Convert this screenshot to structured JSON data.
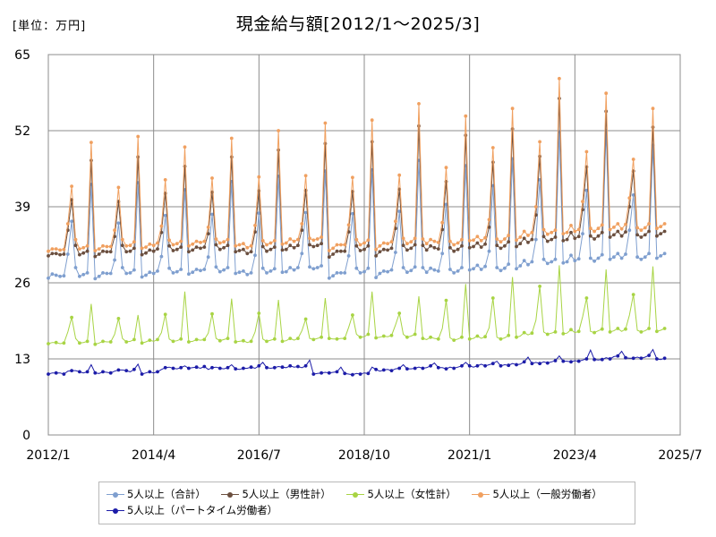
{
  "unit_label": "[単位：万円]",
  "chart_data": {
    "type": "line",
    "title": "現金給与額[2012/1～2025/3]",
    "xlabel": "",
    "ylabel": "",
    "x_start": "2012/1",
    "x_end": "2025/3",
    "xlim": [
      "2012/1",
      "2025/7"
    ],
    "ylim": [
      0,
      65
    ],
    "yticks": [
      0,
      13,
      26,
      39,
      52,
      65
    ],
    "xticks": [
      "2012/1",
      "2014/4",
      "2016/7",
      "2018/10",
      "2021/1",
      "2023/4",
      "2025/7"
    ],
    "grid": true,
    "legend_position": "bottom",
    "series": [
      {
        "name": "5人以上（合計）",
        "color": "#7f9fcf",
        "values": [
          26.8,
          27.5,
          27.3,
          27.1,
          27.2,
          30.9,
          36.5,
          28.6,
          27.1,
          27.4,
          27.7,
          42.8,
          26.7,
          27.1,
          27.7,
          27.6,
          27.6,
          29.9,
          36.2,
          28.6,
          27.6,
          27.7,
          28.2,
          43.1,
          27.0,
          27.3,
          27.8,
          27.6,
          28.0,
          30.5,
          37.5,
          28.5,
          27.7,
          27.9,
          28.3,
          41.9,
          27.5,
          27.8,
          28.3,
          28.1,
          28.3,
          30.4,
          37.7,
          28.7,
          27.9,
          28.2,
          28.6,
          43.3,
          27.6,
          27.8,
          28.0,
          27.4,
          27.7,
          30.7,
          37.9,
          28.5,
          27.7,
          28.0,
          28.4,
          44.2,
          27.8,
          27.9,
          28.6,
          28.2,
          28.6,
          31.0,
          38.0,
          28.7,
          28.4,
          28.6,
          28.9,
          45.1,
          26.8,
          27.2,
          27.7,
          27.7,
          27.7,
          30.6,
          37.8,
          28.5,
          27.7,
          27.9,
          28.5,
          45.3,
          26.9,
          27.6,
          28.0,
          27.9,
          28.2,
          31.2,
          38.2,
          28.6,
          27.8,
          28.1,
          28.7,
          46.9,
          28.6,
          27.8,
          28.5,
          28.2,
          28.0,
          31.0,
          39.4,
          28.3,
          27.7,
          28.0,
          28.6,
          46.0,
          28.2,
          28.4,
          29.0,
          28.3,
          28.8,
          31.4,
          42.6,
          28.6,
          28.1,
          28.5,
          29.2,
          47.2,
          28.4,
          28.9,
          29.8,
          29.1,
          29.6,
          33.4,
          43.6,
          30.0,
          29.3,
          29.6,
          30.0,
          51.8,
          29.4,
          29.6,
          30.7,
          29.8,
          30.1,
          34.4,
          41.8,
          30.2,
          29.7,
          30.2,
          30.8,
          52.0,
          30.0,
          30.4,
          31.0,
          30.2,
          30.9,
          35.0,
          41.0,
          30.4,
          30.0,
          30.4,
          31.0,
          49.5,
          30.2,
          30.6,
          31.0
        ],
        "stride": 1
      },
      {
        "name": "5人以上（男性計）",
        "color": "#6b4f3f",
        "values": [
          30.6,
          31.0,
          31.0,
          30.8,
          30.9,
          35.0,
          40.2,
          32.4,
          30.8,
          31.1,
          31.4,
          46.9,
          30.5,
          30.9,
          31.4,
          31.3,
          31.3,
          33.9,
          39.9,
          32.4,
          31.3,
          31.4,
          31.9,
          47.5,
          30.8,
          31.1,
          31.6,
          31.4,
          31.8,
          34.6,
          41.3,
          32.3,
          31.5,
          31.7,
          32.1,
          45.9,
          31.3,
          31.6,
          32.1,
          31.9,
          32.1,
          34.4,
          41.5,
          32.5,
          31.7,
          32.0,
          32.4,
          47.5,
          31.3,
          31.5,
          31.7,
          31.0,
          31.3,
          34.7,
          41.7,
          32.2,
          31.4,
          31.7,
          32.1,
          48.7,
          31.6,
          31.7,
          32.4,
          32.0,
          32.4,
          35.0,
          41.8,
          32.5,
          32.2,
          32.4,
          32.7,
          49.8,
          30.4,
          30.9,
          31.4,
          31.4,
          31.4,
          34.7,
          41.6,
          32.3,
          31.5,
          31.7,
          32.3,
          50.1,
          30.6,
          31.3,
          31.7,
          31.6,
          31.9,
          35.3,
          42.0,
          32.4,
          31.6,
          31.9,
          32.5,
          52.8,
          32.4,
          31.6,
          32.3,
          32.0,
          31.8,
          35.1,
          43.3,
          32.0,
          31.4,
          31.7,
          32.3,
          51.2,
          32.0,
          32.2,
          32.8,
          32.1,
          32.6,
          35.5,
          46.6,
          32.4,
          31.9,
          32.3,
          33.0,
          52.3,
          32.2,
          32.7,
          33.6,
          32.9,
          33.4,
          37.6,
          47.6,
          33.9,
          33.1,
          33.4,
          33.8,
          57.5,
          33.2,
          33.4,
          34.6,
          33.6,
          33.9,
          38.5,
          45.8,
          34.0,
          33.5,
          34.0,
          34.6,
          55.3,
          33.8,
          34.2,
          34.8,
          34.0,
          34.7,
          39.0,
          45.1,
          34.2,
          33.8,
          34.2,
          34.8,
          52.6,
          34.0,
          34.4,
          34.8
        ],
        "stride": 1
      },
      {
        "name": "5人以上（女性計）",
        "color": "#a8d444",
        "values": [
          15.6,
          15.8,
          15.8,
          15.6,
          15.7,
          17.6,
          20.1,
          16.5,
          15.7,
          15.8,
          16.0,
          22.4,
          15.5,
          15.7,
          16.0,
          15.9,
          15.9,
          17.2,
          19.9,
          16.5,
          15.9,
          16.0,
          16.3,
          20.5,
          15.7,
          15.9,
          16.2,
          16.0,
          16.3,
          17.5,
          20.6,
          16.4,
          16.0,
          16.1,
          16.4,
          24.5,
          15.9,
          16.0,
          16.3,
          16.2,
          16.3,
          17.4,
          20.7,
          16.5,
          16.1,
          16.3,
          16.5,
          23.3,
          15.9,
          16.0,
          16.1,
          15.8,
          16.0,
          17.6,
          20.8,
          16.4,
          16.0,
          16.2,
          16.4,
          23.1,
          16.0,
          16.1,
          16.5,
          16.2,
          16.5,
          17.8,
          19.8,
          16.5,
          16.3,
          16.5,
          16.7,
          23.4,
          16.5,
          16.4,
          16.4,
          16.5,
          16.5,
          18.4,
          20.5,
          17.2,
          16.7,
          16.8,
          17.2,
          24.5,
          16.6,
          16.7,
          16.9,
          16.8,
          17.0,
          18.8,
          20.8,
          17.2,
          16.7,
          16.9,
          17.2,
          23.7,
          16.5,
          16.3,
          16.7,
          16.5,
          16.4,
          18.2,
          23.0,
          16.6,
          16.2,
          16.4,
          16.7,
          25.8,
          16.4,
          16.5,
          16.9,
          16.5,
          16.8,
          18.3,
          23.4,
          16.7,
          16.4,
          16.6,
          17.0,
          27.0,
          16.7,
          16.9,
          17.5,
          17.1,
          17.4,
          19.6,
          25.4,
          17.6,
          17.2,
          17.4,
          17.6,
          29.0,
          17.3,
          17.4,
          18.0,
          17.5,
          17.7,
          20.2,
          23.4,
          17.7,
          17.5,
          17.8,
          18.1,
          28.3,
          17.6,
          17.8,
          18.2,
          17.7,
          18.1,
          20.5,
          24.0,
          17.9,
          17.6,
          17.8,
          18.2,
          28.8,
          17.7,
          17.9,
          18.2
        ],
        "stride": 2
      },
      {
        "name": "5人以上（一般労働者）",
        "color": "#f0a060",
        "values": [
          31.4,
          31.8,
          31.8,
          31.6,
          31.7,
          36.1,
          42.5,
          33.4,
          31.8,
          32.0,
          32.3,
          50.0,
          31.5,
          31.8,
          32.3,
          32.2,
          32.2,
          35.0,
          42.3,
          33.4,
          32.3,
          32.4,
          33.0,
          51.0,
          31.9,
          32.1,
          32.6,
          32.4,
          32.8,
          35.7,
          43.6,
          33.3,
          32.5,
          32.7,
          33.1,
          49.2,
          32.3,
          32.6,
          33.1,
          32.9,
          33.1,
          35.5,
          43.9,
          33.5,
          32.8,
          33.0,
          33.4,
          50.7,
          32.3,
          32.5,
          32.7,
          32.0,
          32.3,
          35.8,
          44.1,
          33.2,
          32.5,
          32.8,
          33.2,
          52.0,
          32.6,
          32.8,
          33.5,
          33.1,
          33.4,
          36.1,
          44.3,
          33.6,
          33.3,
          33.5,
          33.8,
          53.3,
          31.5,
          31.9,
          32.5,
          32.5,
          32.5,
          35.9,
          44.0,
          33.4,
          32.5,
          32.8,
          33.3,
          53.8,
          31.7,
          32.3,
          32.8,
          32.7,
          33.0,
          36.5,
          44.4,
          33.6,
          32.7,
          33.0,
          33.6,
          56.6,
          33.5,
          32.7,
          33.4,
          33.1,
          32.9,
          36.3,
          45.7,
          33.1,
          32.5,
          32.8,
          33.4,
          54.5,
          33.2,
          33.3,
          33.9,
          33.2,
          33.7,
          36.8,
          49.1,
          33.5,
          33.0,
          33.5,
          34.1,
          55.8,
          33.3,
          33.8,
          34.8,
          34.1,
          34.6,
          39.0,
          50.1,
          35.1,
          34.3,
          34.6,
          35.0,
          60.9,
          34.4,
          34.6,
          35.8,
          34.8,
          35.1,
          39.9,
          48.4,
          35.3,
          34.8,
          35.3,
          35.9,
          58.4,
          35.1,
          35.5,
          36.1,
          35.2,
          36.0,
          40.5,
          47.1,
          35.4,
          35.0,
          35.4,
          36.1,
          55.8,
          35.3,
          35.6,
          36.1
        ],
        "stride": 1
      },
      {
        "name": "5人以上（パートタイム労働者）",
        "color": "#1c1ca8",
        "values": [
          10.4,
          10.6,
          10.6,
          10.6,
          10.4,
          10.9,
          11.0,
          11.0,
          10.8,
          10.6,
          10.8,
          12.0,
          10.6,
          10.5,
          10.8,
          10.7,
          10.6,
          10.9,
          11.1,
          11.1,
          11.0,
          10.8,
          11.2,
          12.1,
          10.4,
          10.6,
          10.8,
          10.6,
          10.8,
          11.2,
          11.5,
          11.6,
          11.4,
          11.3,
          11.5,
          11.8,
          11.4,
          11.5,
          11.6,
          11.4,
          11.7,
          11.2,
          11.5,
          11.6,
          11.4,
          11.3,
          11.5,
          12.0,
          11.3,
          11.2,
          11.4,
          11.4,
          11.6,
          11.4,
          11.8,
          12.4,
          11.5,
          11.4,
          11.5,
          11.7,
          11.6,
          11.5,
          11.8,
          11.6,
          11.7,
          11.5,
          11.8,
          12.8,
          10.4,
          10.5,
          10.6,
          10.7,
          10.6,
          10.7,
          10.8,
          11.6,
          10.5,
          10.4,
          10.3,
          10.5,
          10.4,
          10.6,
          10.5,
          11.6,
          11.2,
          10.9,
          11.1,
          11.2,
          11.0,
          11.3,
          11.4,
          12.0,
          11.3,
          11.3,
          11.4,
          11.6,
          11.4,
          11.5,
          11.8,
          12.3,
          11.5,
          11.5,
          11.3,
          11.6,
          11.4,
          11.6,
          11.8,
          12.4,
          11.8,
          11.6,
          11.8,
          12.1,
          11.8,
          12.0,
          12.2,
          12.6,
          11.8,
          12.0,
          11.9,
          12.2,
          12.0,
          12.1,
          12.5,
          13.3,
          12.2,
          12.4,
          12.2,
          12.5,
          12.3,
          12.5,
          12.7,
          13.5,
          12.6,
          12.6,
          12.5,
          12.7,
          12.6,
          12.8,
          13.0,
          14.5,
          12.9,
          12.8,
          12.9,
          13.2,
          13.0,
          13.4,
          13.5,
          14.3,
          13.2,
          13.1,
          13.1,
          13.3,
          13.1,
          13.3,
          13.6,
          14.6,
          13.0,
          12.9,
          13.1
        ],
        "stride": 2
      }
    ]
  }
}
